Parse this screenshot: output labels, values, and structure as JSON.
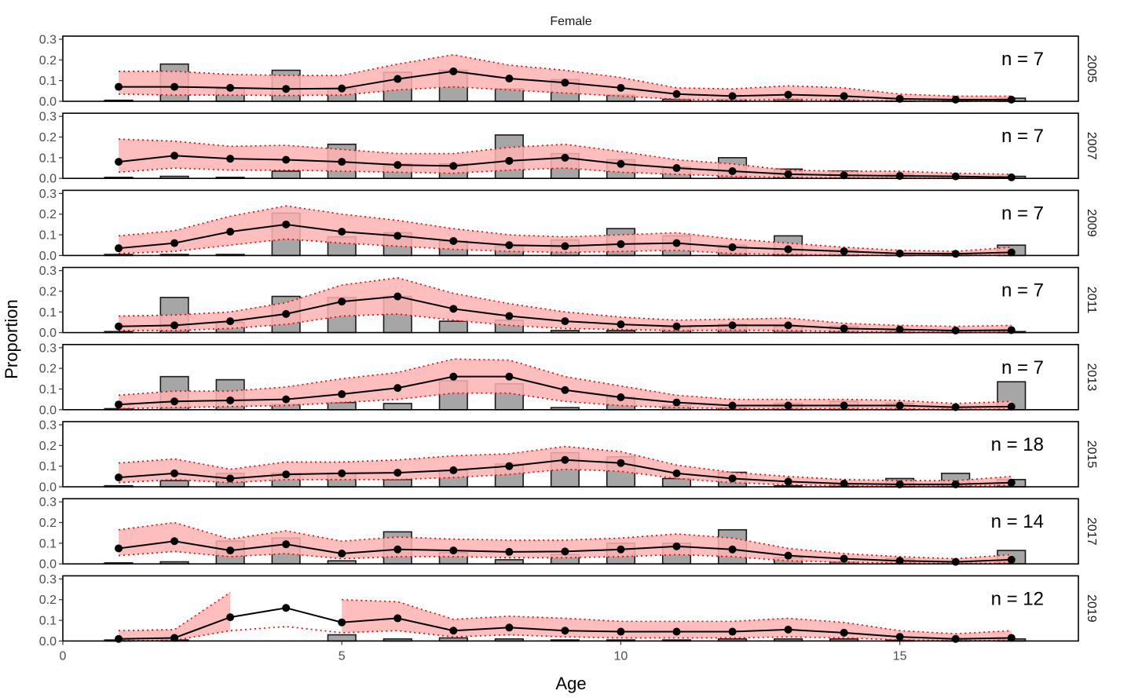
{
  "chart_data": {
    "type": "bar",
    "title": "Female",
    "xlabel": "Age",
    "ylabel": "Proportion",
    "xlim": [
      0,
      18.2
    ],
    "ylim": [
      0,
      0.3
    ],
    "x_ticks": [
      0,
      5,
      10,
      15
    ],
    "y_ticks": [
      0.0,
      0.1,
      0.2,
      0.3
    ],
    "y_tick_labels": [
      "0.0",
      "0.1",
      "0.2",
      "0.3"
    ],
    "ages": [
      1,
      2,
      3,
      4,
      5,
      6,
      7,
      8,
      9,
      10,
      11,
      12,
      13,
      14,
      15,
      16,
      17
    ],
    "colors": {
      "bar_fill": "#a6a6a6",
      "bar_stroke": "#1a1a1a",
      "band_fill": "#ffb3b3",
      "band_edge": "#e60000",
      "line": "#000000"
    },
    "panels": [
      {
        "year": "2005",
        "n_label": "n = 7",
        "observed": [
          0.005,
          0.18,
          0.06,
          0.15,
          0.06,
          0.14,
          0.15,
          0.06,
          0.105,
          0.03,
          0.01,
          0.01,
          0.01,
          0.01,
          0.01,
          0.005,
          0.015
        ],
        "expected": [
          0.07,
          0.07,
          0.065,
          0.06,
          0.062,
          0.108,
          0.145,
          0.11,
          0.09,
          0.065,
          0.035,
          0.025,
          0.032,
          0.025,
          0.012,
          0.008,
          0.008
        ],
        "lower": [
          0.035,
          0.03,
          0.03,
          0.028,
          0.03,
          0.055,
          0.07,
          0.055,
          0.04,
          0.025,
          0.01,
          0.005,
          0.01,
          0.005,
          0.002,
          0.001,
          0.001
        ],
        "upper": [
          0.145,
          0.145,
          0.13,
          0.125,
          0.125,
          0.18,
          0.225,
          0.175,
          0.15,
          0.115,
          0.065,
          0.06,
          0.075,
          0.065,
          0.035,
          0.025,
          0.025
        ]
      },
      {
        "year": "2007",
        "n_label": "n = 7",
        "observed": [
          0.005,
          0.01,
          0.005,
          0.035,
          0.165,
          0.07,
          0.07,
          0.21,
          0.12,
          0.09,
          0.055,
          0.1,
          0.045,
          0.035,
          0.02,
          0.01,
          0.01
        ],
        "expected": [
          0.08,
          0.11,
          0.095,
          0.09,
          0.08,
          0.065,
          0.06,
          0.085,
          0.1,
          0.07,
          0.05,
          0.035,
          0.02,
          0.015,
          0.012,
          0.01,
          0.005
        ],
        "lower": [
          0.03,
          0.05,
          0.04,
          0.04,
          0.035,
          0.03,
          0.025,
          0.04,
          0.05,
          0.03,
          0.02,
          0.01,
          0.005,
          0.003,
          0.002,
          0.001,
          0.001
        ],
        "upper": [
          0.19,
          0.18,
          0.155,
          0.16,
          0.14,
          0.12,
          0.12,
          0.15,
          0.165,
          0.13,
          0.09,
          0.07,
          0.04,
          0.035,
          0.035,
          0.025,
          0.02
        ]
      },
      {
        "year": "2009",
        "n_label": "n = 7",
        "observed": [
          0.005,
          0.005,
          0.005,
          0.205,
          0.09,
          0.11,
          0.07,
          0.045,
          0.075,
          0.13,
          0.095,
          0.05,
          0.095,
          0.025,
          0.01,
          0.01,
          0.05
        ],
        "expected": [
          0.035,
          0.06,
          0.115,
          0.15,
          0.115,
          0.095,
          0.07,
          0.05,
          0.045,
          0.055,
          0.06,
          0.04,
          0.03,
          0.02,
          0.01,
          0.008,
          0.015
        ],
        "lower": [
          0.01,
          0.02,
          0.05,
          0.08,
          0.06,
          0.045,
          0.03,
          0.02,
          0.015,
          0.02,
          0.025,
          0.01,
          0.005,
          0.002,
          0.001,
          0.001,
          0.002
        ],
        "upper": [
          0.095,
          0.12,
          0.19,
          0.24,
          0.2,
          0.17,
          0.13,
          0.1,
          0.09,
          0.1,
          0.11,
          0.08,
          0.06,
          0.04,
          0.025,
          0.02,
          0.04
        ]
      },
      {
        "year": "2011",
        "n_label": "n = 7",
        "observed": [
          0.005,
          0.17,
          0.05,
          0.175,
          0.17,
          0.175,
          0.055,
          0.06,
          0.01,
          0.01,
          0.03,
          0.04,
          0.03,
          0.03,
          0.01,
          0.005,
          0.005
        ],
        "expected": [
          0.03,
          0.035,
          0.055,
          0.09,
          0.15,
          0.175,
          0.115,
          0.08,
          0.055,
          0.04,
          0.03,
          0.035,
          0.035,
          0.02,
          0.015,
          0.01,
          0.012
        ],
        "lower": [
          0.01,
          0.01,
          0.02,
          0.04,
          0.08,
          0.09,
          0.06,
          0.035,
          0.02,
          0.015,
          0.01,
          0.012,
          0.01,
          0.005,
          0.003,
          0.002,
          0.002
        ],
        "upper": [
          0.08,
          0.085,
          0.1,
          0.145,
          0.23,
          0.265,
          0.19,
          0.14,
          0.1,
          0.075,
          0.06,
          0.065,
          0.07,
          0.045,
          0.035,
          0.03,
          0.035
        ]
      },
      {
        "year": "2013",
        "n_label": "n = 7",
        "observed": [
          0.005,
          0.16,
          0.145,
          0.025,
          0.035,
          0.03,
          0.14,
          0.125,
          0.01,
          0.06,
          0.02,
          0.01,
          0.03,
          0.04,
          0.03,
          0.01,
          0.135
        ],
        "expected": [
          0.025,
          0.04,
          0.045,
          0.05,
          0.075,
          0.105,
          0.16,
          0.16,
          0.095,
          0.06,
          0.035,
          0.02,
          0.02,
          0.02,
          0.02,
          0.012,
          0.015
        ],
        "lower": [
          0.005,
          0.01,
          0.015,
          0.02,
          0.035,
          0.05,
          0.08,
          0.08,
          0.04,
          0.02,
          0.01,
          0.005,
          0.005,
          0.005,
          0.005,
          0.002,
          0.003
        ],
        "upper": [
          0.07,
          0.09,
          0.09,
          0.11,
          0.15,
          0.18,
          0.245,
          0.24,
          0.16,
          0.115,
          0.07,
          0.05,
          0.05,
          0.05,
          0.045,
          0.03,
          0.04
        ]
      },
      {
        "year": "2015",
        "n_label": "n = 18",
        "observed": [
          0.005,
          0.03,
          0.065,
          0.065,
          0.065,
          0.035,
          0.08,
          0.11,
          0.165,
          0.145,
          0.04,
          0.07,
          0.005,
          0.01,
          0.04,
          0.065,
          0.035
        ],
        "expected": [
          0.045,
          0.065,
          0.04,
          0.06,
          0.065,
          0.068,
          0.08,
          0.1,
          0.13,
          0.115,
          0.065,
          0.04,
          0.025,
          0.015,
          0.012,
          0.012,
          0.02
        ],
        "lower": [
          0.02,
          0.035,
          0.02,
          0.035,
          0.035,
          0.035,
          0.045,
          0.06,
          0.085,
          0.075,
          0.04,
          0.02,
          0.01,
          0.005,
          0.003,
          0.003,
          0.008
        ],
        "upper": [
          0.115,
          0.135,
          0.085,
          0.12,
          0.12,
          0.13,
          0.15,
          0.16,
          0.195,
          0.17,
          0.105,
          0.07,
          0.05,
          0.035,
          0.03,
          0.03,
          0.05
        ]
      },
      {
        "year": "2017",
        "n_label": "n = 14",
        "observed": [
          0.005,
          0.01,
          0.11,
          0.125,
          0.015,
          0.155,
          0.055,
          0.02,
          0.045,
          0.1,
          0.1,
          0.165,
          0.03,
          0.01,
          0.025,
          0.01,
          0.065
        ],
        "expected": [
          0.075,
          0.11,
          0.065,
          0.095,
          0.05,
          0.07,
          0.065,
          0.058,
          0.06,
          0.07,
          0.085,
          0.07,
          0.04,
          0.025,
          0.015,
          0.01,
          0.02
        ],
        "lower": [
          0.04,
          0.06,
          0.035,
          0.05,
          0.025,
          0.035,
          0.035,
          0.03,
          0.03,
          0.035,
          0.045,
          0.035,
          0.015,
          0.008,
          0.004,
          0.002,
          0.005
        ],
        "upper": [
          0.165,
          0.2,
          0.12,
          0.16,
          0.11,
          0.13,
          0.12,
          0.115,
          0.115,
          0.125,
          0.145,
          0.125,
          0.075,
          0.05,
          0.035,
          0.025,
          0.045
        ]
      },
      {
        "year": "2019",
        "n_label": "n = 12",
        "observed": [
          0.005,
          0.005,
          0.0,
          0.0,
          0.03,
          0.01,
          0.015,
          0.01,
          0.005,
          0.005,
          0.005,
          0.01,
          0.01,
          0.01,
          0.005,
          0.005,
          0.01
        ],
        "expected": [
          0.01,
          0.015,
          0.115,
          0.16,
          0.09,
          0.11,
          0.05,
          0.065,
          0.05,
          0.045,
          0.045,
          0.045,
          0.055,
          0.04,
          0.02,
          0.01,
          0.015
        ],
        "lower": [
          0.002,
          0.003,
          0.05,
          0.07,
          0.04,
          0.05,
          0.02,
          0.03,
          0.02,
          0.015,
          0.015,
          0.015,
          0.02,
          0.015,
          0.005,
          0.002,
          0.003
        ],
        "upper": [
          0.05,
          0.055,
          0.235,
          null,
          0.2,
          0.19,
          0.105,
          0.12,
          0.11,
          0.095,
          0.095,
          0.095,
          0.11,
          0.09,
          0.05,
          0.035,
          0.05
        ]
      }
    ]
  }
}
